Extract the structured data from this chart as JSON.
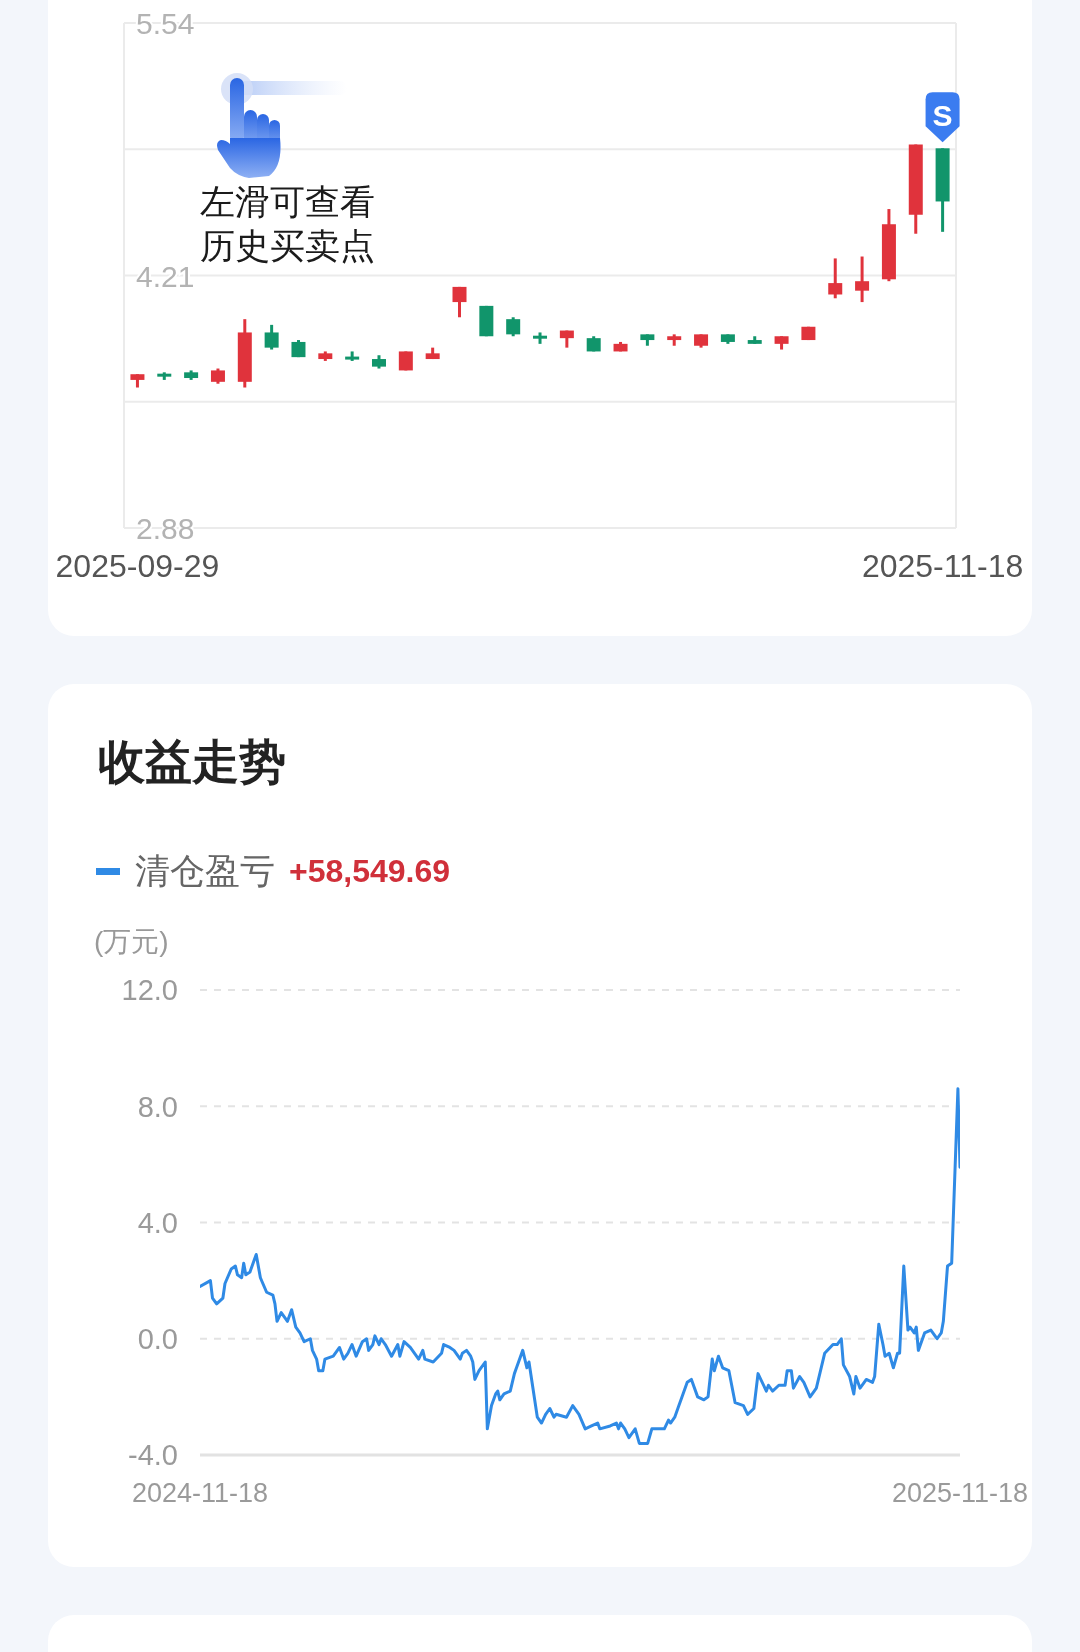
{
  "chart_data": [
    {
      "type": "candlestick",
      "categories": [
        "2025-09-29",
        null,
        null,
        null,
        null,
        null,
        null,
        null,
        null,
        null,
        null,
        null,
        null,
        null,
        null,
        null,
        null,
        null,
        null,
        null,
        null,
        null,
        null,
        null,
        null,
        null,
        null,
        null,
        null,
        null,
        "2025-11-18"
      ],
      "ohlc": [
        [
          3.66,
          3.69,
          3.62,
          3.69
        ],
        [
          3.69,
          3.7,
          3.66,
          3.68
        ],
        [
          3.7,
          3.71,
          3.66,
          3.67
        ],
        [
          3.65,
          3.72,
          3.64,
          3.71
        ],
        [
          3.65,
          3.98,
          3.62,
          3.91
        ],
        [
          3.91,
          3.95,
          3.82,
          3.83
        ],
        [
          3.86,
          3.87,
          3.78,
          3.78
        ],
        [
          3.77,
          3.81,
          3.76,
          3.8
        ],
        [
          3.78,
          3.81,
          3.76,
          3.77
        ],
        [
          3.77,
          3.79,
          3.72,
          3.73
        ],
        [
          3.71,
          3.81,
          3.71,
          3.81
        ],
        [
          3.77,
          3.83,
          3.77,
          3.8
        ],
        [
          4.07,
          4.15,
          3.99,
          4.15
        ],
        [
          4.05,
          4.05,
          3.89,
          3.89
        ],
        [
          3.98,
          3.99,
          3.89,
          3.9
        ],
        [
          3.89,
          3.91,
          3.85,
          3.88
        ],
        [
          3.88,
          3.92,
          3.83,
          3.92
        ],
        [
          3.88,
          3.89,
          3.81,
          3.81
        ],
        [
          3.81,
          3.86,
          3.81,
          3.85
        ],
        [
          3.9,
          3.9,
          3.84,
          3.87
        ],
        [
          3.87,
          3.9,
          3.84,
          3.89
        ],
        [
          3.84,
          3.9,
          3.83,
          3.9
        ],
        [
          3.9,
          3.9,
          3.85,
          3.86
        ],
        [
          3.87,
          3.89,
          3.85,
          3.85
        ],
        [
          3.85,
          3.89,
          3.82,
          3.89
        ],
        [
          3.87,
          3.94,
          3.87,
          3.94
        ],
        [
          4.11,
          4.3,
          4.09,
          4.17
        ],
        [
          4.13,
          4.31,
          4.07,
          4.18
        ],
        [
          4.19,
          4.56,
          4.18,
          4.48
        ],
        [
          4.53,
          4.9,
          4.43,
          4.9
        ],
        [
          4.88,
          4.88,
          4.44,
          4.6
        ]
      ],
      "colors": [
        "#e0333c",
        "#11956b",
        "#11956b",
        "#e0333c",
        "#e0333c",
        "#11956b",
        "#11956b",
        "#e0333c",
        "#11956b",
        "#11956b",
        "#e0333c",
        "#e0333c",
        "#e0333c",
        "#11956b",
        "#11956b",
        "#11956b",
        "#e0333c",
        "#11956b",
        "#e0333c",
        "#11956b",
        "#e0333c",
        "#e0333c",
        "#11956b",
        "#11956b",
        "#e0333c",
        "#e0333c",
        "#e0333c",
        "#e0333c",
        "#e0333c",
        "#e0333c",
        "#11956b"
      ],
      "ylim": [
        2.88,
        5.54
      ],
      "yticks": [
        2.88,
        {
          "value": 3.545,
          "label": null
        },
        4.21,
        {
          "value": 4.875,
          "label": null
        },
        5.54
      ],
      "grid": "y",
      "annotations": [
        "左滑可查看",
        "历史买卖点",
        {
          "text": "S",
          "x": "2025-11-18",
          "y": 4.88
        }
      ]
    },
    {
      "type": "line",
      "title": "收益走势",
      "ylabel": "(万元)",
      "legend": "top left",
      "grid": "y",
      "annotations": [
        "+58,549.69"
      ],
      "x": [
        "2024-11-18",
        "2024-11-23",
        "2024-11-24",
        "2024-11-26",
        "2024-11-29",
        "2024-11-30",
        "2024-12-03",
        "2024-12-05",
        "2024-12-06",
        "2024-12-08",
        "2024-12-09",
        "2024-12-10",
        "2024-12-12",
        "2024-12-14",
        "2024-12-15",
        "2024-12-17",
        "2024-12-20",
        "2024-12-23",
        "2024-12-24",
        "2024-12-25",
        "2024-12-27",
        "2024-12-29",
        "2024-12-30",
        "2025-01-01",
        "2025-01-03",
        "2025-01-05",
        "2025-01-07",
        "2025-01-10",
        "2025-01-11",
        "2025-01-13",
        "2025-01-14",
        "2025-01-16",
        "2025-01-17",
        "2025-01-21",
        "2025-01-24",
        "2025-01-26",
        "2025-01-28",
        "2025-01-30",
        "2025-02-01",
        "2025-02-04",
        "2025-02-06",
        "2025-02-07",
        "2025-02-09",
        "2025-02-10",
        "2025-02-12",
        "2025-02-13",
        "2025-02-15",
        "2025-02-18",
        "2025-02-21",
        "2025-02-22",
        "2025-02-24",
        "2025-02-27",
        "2025-03-03",
        "2025-03-05",
        "2025-03-06",
        "2025-03-10",
        "2025-03-14",
        "2025-03-15",
        "2025-03-18",
        "2025-03-20",
        "2025-03-23",
        "2025-03-24",
        "2025-03-26",
        "2025-03-28",
        "2025-03-29",
        "2025-03-30",
        "2025-04-01",
        "2025-04-04",
        "2025-04-05",
        "2025-04-07",
        "2025-04-09",
        "2025-04-10",
        "2025-04-11",
        "2025-04-13",
        "2025-04-16",
        "2025-04-18",
        "2025-04-19",
        "2025-04-22",
        "2025-04-24",
        "2025-04-25",
        "2025-04-29",
        "2025-05-01",
        "2025-05-03",
        "2025-05-05",
        "2025-05-07",
        "2025-05-08",
        "2025-05-13",
        "2025-05-16",
        "2025-05-19",
        "2025-05-22",
        "2025-05-25",
        "2025-05-28",
        "2025-05-29",
        "2025-06-03",
        "2025-06-06",
        "2025-06-07",
        "2025-06-08",
        "2025-06-10",
        "2025-06-12",
        "2025-06-15",
        "2025-06-17",
        "2025-06-21",
        "2025-06-23",
        "2025-06-29",
        "2025-07-01",
        "2025-07-02",
        "2025-07-04",
        "2025-07-06",
        "2025-07-07",
        "2025-07-10",
        "2025-07-12",
        "2025-07-15",
        "2025-07-18",
        "2025-07-20",
        "2025-07-22",
        "2025-07-23",
        "2025-07-25",
        "2025-07-27",
        "2025-07-30",
        "2025-08-02",
        "2025-08-06",
        "2025-08-08",
        "2025-08-11",
        "2025-08-13",
        "2025-08-17",
        "2025-08-18",
        "2025-08-20",
        "2025-08-23",
        "2025-08-26",
        "2025-08-27",
        "2025-08-29",
        "2025-08-30",
        "2025-09-02",
        "2025-09-04",
        "2025-09-07",
        "2025-09-09",
        "2025-09-10",
        "2025-09-14",
        "2025-09-18",
        "2025-09-20",
        "2025-09-22",
        "2025-09-23",
        "2025-09-26",
        "2025-09-28",
        "2025-09-29",
        "2025-10-01",
        "2025-10-03",
        "2025-10-04",
        "2025-10-07",
        "2025-10-08",
        "2025-10-10",
        "2025-10-12",
        "2025-10-13",
        "2025-10-15",
        "2025-10-17",
        "2025-10-19",
        "2025-10-20",
        "2025-10-22",
        "2025-10-24",
        "2025-10-25",
        "2025-10-27",
        "2025-10-28",
        "2025-10-29",
        "2025-11-01",
        "2025-11-04",
        "2025-11-06",
        "2025-11-07",
        "2025-11-09",
        "2025-11-10",
        "2025-11-12",
        "2025-11-14",
        "2025-11-17",
        "2025-11-18"
      ],
      "series": [
        {
          "name": "清仓盈亏",
          "color": "#2f8ae5",
          "values": [
            1.8,
            2.0,
            1.4,
            1.2,
            1.4,
            1.9,
            2.4,
            2.5,
            2.2,
            2.1,
            2.6,
            2.2,
            2.3,
            2.7,
            2.9,
            2.1,
            1.6,
            1.5,
            1.2,
            0.6,
            0.9,
            0.7,
            0.6,
            1.0,
            0.4,
            0.2,
            -0.1,
            0.0,
            -0.4,
            -0.7,
            -1.1,
            -1.1,
            -0.7,
            -0.6,
            -0.3,
            -0.7,
            -0.5,
            -0.2,
            -0.6,
            -0.1,
            0.0,
            -0.4,
            -0.2,
            0.1,
            -0.2,
            0.0,
            -0.2,
            -0.6,
            -0.2,
            -0.6,
            -0.1,
            -0.3,
            -0.7,
            -0.4,
            -0.7,
            -0.8,
            -0.5,
            -0.2,
            -0.3,
            -0.4,
            -0.7,
            -0.5,
            -0.4,
            -0.6,
            -0.8,
            -1.4,
            -1.1,
            -0.8,
            -3.1,
            -2.3,
            -1.9,
            -1.8,
            -2.1,
            -1.9,
            -1.8,
            -1.2,
            -1.0,
            -0.4,
            -1.0,
            -0.8,
            -2.7,
            -2.9,
            -2.6,
            -2.4,
            -2.7,
            -2.6,
            -2.7,
            -2.3,
            -2.6,
            -3.1,
            -3.0,
            -2.9,
            -3.1,
            -3.0,
            -2.9,
            -3.1,
            -2.9,
            -3.1,
            -3.4,
            -3.1,
            -3.6,
            -3.6,
            -3.1,
            -3.1,
            -2.8,
            -2.9,
            -2.7,
            -2.3,
            -2.1,
            -1.5,
            -1.4,
            -2.0,
            -2.1,
            -2.0,
            -0.7,
            -1.1,
            -0.6,
            -1.0,
            -1.1,
            -2.2,
            -2.3,
            -2.6,
            -2.4,
            -1.2,
            -1.8,
            -1.6,
            -1.8,
            -1.6,
            -1.6,
            -1.1,
            -1.1,
            -1.7,
            -1.3,
            -1.5,
            -2.0,
            -1.8,
            -1.7,
            -0.5,
            -0.2,
            -0.2,
            0.0,
            -0.9,
            -1.3,
            -1.9,
            -1.3,
            -1.7,
            -1.5,
            -1.4,
            -1.5,
            -1.3,
            0.5,
            -0.2,
            -0.6,
            -0.5,
            -1.0,
            -0.5,
            -0.5,
            2.5,
            0.3,
            0.4,
            0.2,
            0.4,
            -0.4,
            0.2,
            0.3,
            0.1,
            0.0,
            0.2,
            0.6,
            2.5,
            2.6,
            8.6,
            5.9
          ]
        }
      ],
      "xlim": [
        "2024-11-18",
        "2025-11-18"
      ],
      "xticks": [
        "2024-11-18",
        "2025-11-18"
      ],
      "ylim": [
        -4,
        12
      ],
      "yticks": [
        {
          "value": -4,
          "label": "-4.0"
        },
        {
          "value": 0,
          "label": "0.0"
        },
        {
          "value": 4,
          "label": "4.0"
        },
        {
          "value": 8,
          "label": "8.0"
        },
        {
          "value": 12,
          "label": "12.0"
        }
      ]
    }
  ]
}
